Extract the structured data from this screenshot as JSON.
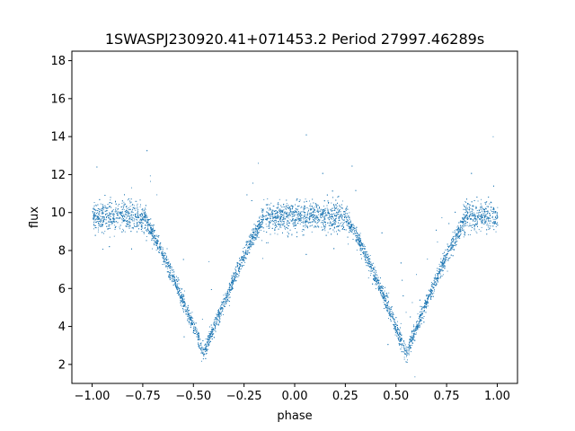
{
  "chart_data": {
    "type": "scatter",
    "title": "1SWASPJ230920.41+071453.2 Period 27997.46289s",
    "xlabel": "phase",
    "ylabel": "flux",
    "xlim": [
      -1.1,
      1.1
    ],
    "ylim": [
      1.0,
      18.5
    ],
    "xticks": [
      -1.0,
      -0.75,
      -0.5,
      -0.25,
      0.0,
      0.25,
      0.5,
      0.75,
      1.0
    ],
    "xtick_labels": [
      "−1.00",
      "−0.75",
      "−0.50",
      "−0.25",
      "0.00",
      "0.25",
      "0.50",
      "0.75",
      "1.00"
    ],
    "yticks": [
      2,
      4,
      6,
      8,
      10,
      12,
      14,
      16,
      18
    ],
    "ytick_labels": [
      "2",
      "4",
      "6",
      "8",
      "10",
      "12",
      "14",
      "16",
      "18"
    ],
    "grid": false,
    "marker_color": "#1f77b4",
    "baseline_flux": 9.8,
    "eclipses": [
      {
        "center_phase": -0.45,
        "min_flux": 2.6,
        "half_width": 0.3
      },
      {
        "center_phase": 0.55,
        "min_flux": 2.6,
        "half_width": 0.3
      }
    ]
  }
}
